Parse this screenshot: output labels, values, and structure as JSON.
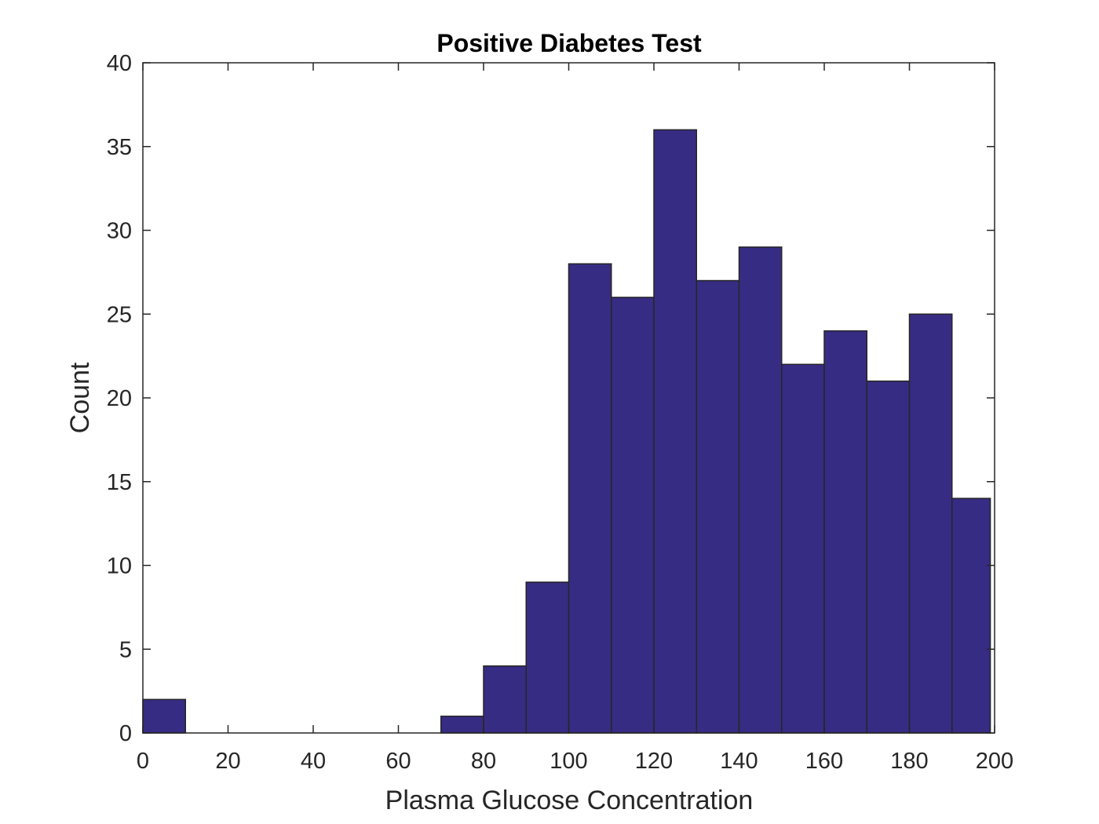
{
  "chart_data": {
    "type": "bar",
    "title": "Positive Diabetes Test",
    "xlabel": "Plasma Glucose Concentration",
    "ylabel": "Count",
    "xlim": [
      0,
      200
    ],
    "ylim": [
      0,
      40
    ],
    "xticks": [
      "0",
      "20",
      "40",
      "60",
      "80",
      "100",
      "120",
      "140",
      "160",
      "180",
      "200"
    ],
    "yticks": [
      "0",
      "5",
      "10",
      "15",
      "20",
      "25",
      "30",
      "35",
      "40"
    ],
    "grid": false,
    "legend": "none",
    "bar_color": "#372c83",
    "bins": [
      {
        "x0": 0,
        "x1": 10,
        "count": 2
      },
      {
        "x0": 70,
        "x1": 80,
        "count": 1
      },
      {
        "x0": 80,
        "x1": 90,
        "count": 4
      },
      {
        "x0": 90,
        "x1": 100,
        "count": 9
      },
      {
        "x0": 100,
        "x1": 110,
        "count": 28
      },
      {
        "x0": 110,
        "x1": 120,
        "count": 26
      },
      {
        "x0": 120,
        "x1": 130,
        "count": 36
      },
      {
        "x0": 130,
        "x1": 140,
        "count": 27
      },
      {
        "x0": 140,
        "x1": 150,
        "count": 29
      },
      {
        "x0": 150,
        "x1": 160,
        "count": 22
      },
      {
        "x0": 160,
        "x1": 170,
        "count": 24
      },
      {
        "x0": 170,
        "x1": 180,
        "count": 21
      },
      {
        "x0": 180,
        "x1": 190,
        "count": 25
      },
      {
        "x0": 190,
        "x1": 199,
        "count": 14
      }
    ]
  }
}
